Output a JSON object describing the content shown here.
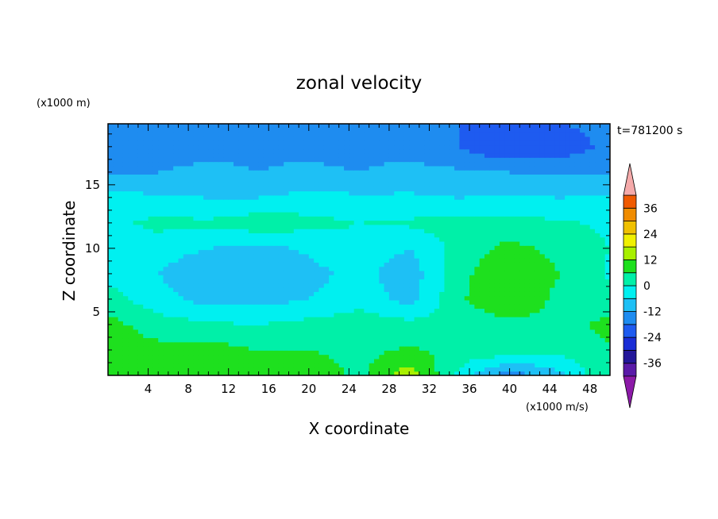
{
  "chart_data": {
    "type": "heatmap",
    "title": "zonal velocity",
    "time_label": "t=781200 s",
    "xlabel": "X coordinate",
    "ylabel": "Z coordinate",
    "x_unit": "(x1000 m/s)",
    "y_unit": "(x1000 m)",
    "xlim": [
      0,
      50
    ],
    "ylim": [
      0,
      19.8
    ],
    "x_ticks": [
      4,
      8,
      12,
      16,
      20,
      24,
      28,
      32,
      36,
      40,
      44,
      48
    ],
    "y_ticks": [
      5,
      10,
      15
    ],
    "colorbar": {
      "tick_labels": [
        "36",
        "24",
        "12",
        "0",
        "-12",
        "-24",
        "-36"
      ],
      "tick_values": [
        36,
        24,
        12,
        0,
        -12,
        -24,
        -36
      ],
      "levels": [
        -42,
        -36,
        -30,
        -24,
        -18,
        -12,
        -6,
        0,
        6,
        12,
        18,
        24,
        30,
        36,
        42
      ],
      "colors": [
        "#5a1aa8",
        "#23179a",
        "#1a2dd6",
        "#1e5bf0",
        "#1e8cf0",
        "#1ec0f5",
        "#00f0f0",
        "#00f0a8",
        "#1ee01e",
        "#a8f000",
        "#f0f000",
        "#f0c000",
        "#f08c00",
        "#f05a00",
        "#f01e00"
      ],
      "under_color": "#8c1aa8",
      "over_color": "#f5aaaa",
      "extend": "both"
    },
    "field_samples": {
      "description_units": "zonal velocity in m/s at grid points",
      "x": [
        0,
        5,
        10,
        15,
        20,
        25,
        30,
        35,
        40,
        45,
        50
      ],
      "z": [
        0,
        2,
        4,
        6,
        8,
        10,
        12,
        14,
        16,
        18,
        19.8
      ],
      "u": [
        [
          8,
          8,
          12,
          12,
          11,
          4,
          16,
          -2,
          -16,
          -8,
          6
        ],
        [
          9,
          8,
          9,
          6,
          6,
          4,
          7,
          4,
          4,
          2,
          5
        ],
        [
          8,
          3,
          1,
          0,
          2,
          3,
          2,
          2,
          4,
          4,
          8
        ],
        [
          3,
          -4,
          -8,
          -8,
          -6,
          -2,
          -8,
          5,
          12,
          4,
          2
        ],
        [
          -2,
          -6,
          -10,
          -12,
          -8,
          -4,
          -10,
          4,
          12,
          6,
          -1
        ],
        [
          -4,
          -4,
          -6,
          -8,
          -5,
          -2,
          -6,
          2,
          8,
          4,
          0
        ],
        [
          -2,
          2,
          1,
          4,
          2,
          0,
          1,
          3,
          2,
          1,
          -1
        ],
        [
          -4,
          -5,
          -6,
          -6,
          -4,
          -5,
          -5,
          -6,
          -5,
          -6,
          -5
        ],
        [
          -12,
          -12,
          -11,
          -12,
          -11,
          -12,
          -10,
          -11,
          -12,
          -12,
          -12
        ],
        [
          -14,
          -14,
          -13,
          -13,
          -13,
          -14,
          -14,
          -18,
          -24,
          -22,
          -16
        ],
        [
          -16,
          -16,
          -15,
          -15,
          -15,
          -16,
          -16,
          -18,
          -20,
          -18,
          -16
        ]
      ]
    }
  }
}
